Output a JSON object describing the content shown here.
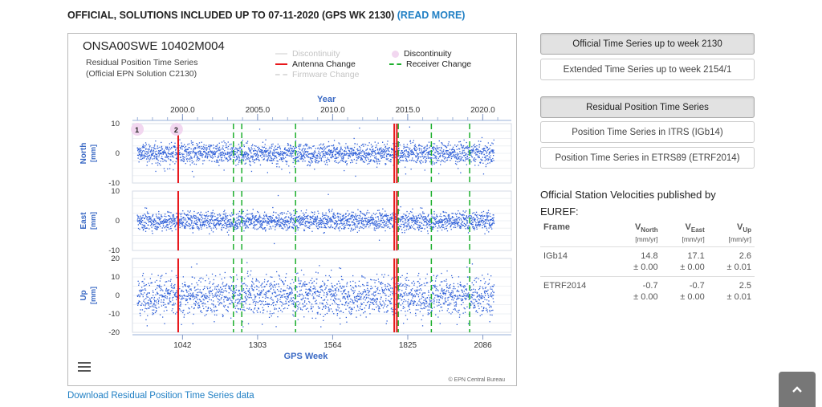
{
  "header": {
    "text": "OFFICIAL, SOLUTIONS INCLUDED UP TO 07-11-2020 (GPS WK 2130)",
    "read_more": "(READ MORE)"
  },
  "chart": {
    "title": "ONSA00SWE 10402M004",
    "subtitle_line1": "Residual Position Time Series",
    "subtitle_line2": "(Official EPN Solution C2130)",
    "legend": {
      "discontinuity_muted": "Discontinuity",
      "antenna_change": "Antenna Change",
      "firmware_change": "Firmware Change",
      "discontinuity": "Discontinuity",
      "receiver_change": "Receiver Change"
    },
    "credit": "© EPN Central Bureau",
    "colors": {
      "points": "#3060d8",
      "antenna_change": "#e8171b",
      "receiver_change": "#1daf2d",
      "discontinuity": "#f2d7f0",
      "axis_label": "#3a69c4"
    }
  },
  "chart_data": {
    "type": "scatter",
    "title": "ONSA00SWE 10402M004",
    "top_axis": {
      "label": "Year",
      "ticks": [
        2000.0,
        2005.0,
        2010.0,
        2015.0,
        2020.0
      ],
      "tick_labels": [
        "2000.0",
        "2005.0",
        "2010.0",
        "2015.0",
        "2020.0"
      ]
    },
    "xlabel": "GPS Week",
    "xticks": [
      1042,
      1303,
      1564,
      1825,
      2086
    ],
    "xlim": [
      868,
      2185
    ],
    "grid": true,
    "discontinuities": [
      {
        "label": "1",
        "gps_week": 885
      },
      {
        "label": "2",
        "gps_week": 1021
      }
    ],
    "antenna_changes": [
      1027,
      1778,
      1787
    ],
    "receiver_changes": [
      1219,
      1248,
      1435,
      1792,
      1907,
      2040
    ],
    "panels": [
      {
        "label": "North",
        "unit": "[mm]",
        "yticks": [
          10,
          0,
          -10
        ],
        "ylim": [
          -10,
          10
        ],
        "scatter_sigma": 1.8,
        "outlier_min": -7
      },
      {
        "label": "East",
        "unit": "[mm]",
        "yticks": [
          10,
          0,
          -10
        ],
        "ylim": [
          -10,
          10
        ],
        "scatter_sigma": 1.6,
        "outlier_min": -4
      },
      {
        "label": "Up",
        "unit": "[mm]",
        "yticks": [
          20,
          10,
          0,
          -10,
          -20
        ],
        "ylim": [
          -20,
          20
        ],
        "scatter_sigma": 5.5,
        "outlier_min": -17
      }
    ]
  },
  "download_link": "Download Residual Position Time Series data",
  "series_buttons": [
    {
      "label": "Official Time Series up to week 2130",
      "active": true
    },
    {
      "label": "Extended Time Series up to week 2154/1",
      "active": false
    }
  ],
  "view_buttons": [
    {
      "label": "Residual Position Time Series",
      "active": true
    },
    {
      "label": "Position Time Series in ITRS (IGb14)",
      "active": false
    },
    {
      "label": "Position Time Series in ETRS89 (ETRF2014)",
      "active": false
    }
  ],
  "velocities": {
    "title": "Official Station Velocities published by EUREF:",
    "headers": {
      "frame": "Frame",
      "north": "V",
      "north_sub": "North",
      "east": "V",
      "east_sub": "East",
      "up": "V",
      "up_sub": "Up",
      "unit": "[mm/yr]"
    },
    "rows": [
      {
        "frame": "IGb14",
        "north": "14.8",
        "north_err": "± 0.00",
        "east": "17.1",
        "east_err": "± 0.00",
        "up": "2.6",
        "up_err": "± 0.01"
      },
      {
        "frame": "ETRF2014",
        "north": "-0.7",
        "north_err": "± 0.00",
        "east": "-0.7",
        "east_err": "± 0.00",
        "up": "2.5",
        "up_err": "± 0.01"
      }
    ]
  },
  "icons": {
    "menu": "hamburger-menu-icon",
    "scroll_top": "chevron-up-icon"
  }
}
